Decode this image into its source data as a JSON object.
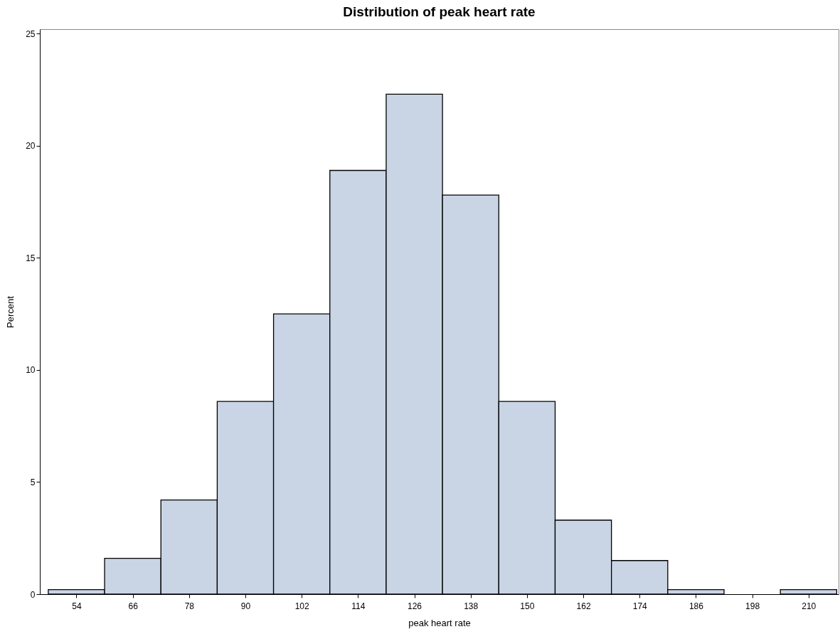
{
  "chart_data": {
    "type": "histogram",
    "title": "Distribution of peak heart rate",
    "xlabel": "peak heart rate",
    "ylabel": "Percent",
    "bins": [
      48,
      60,
      72,
      84,
      96,
      108,
      120,
      132,
      144,
      156,
      168,
      180,
      192,
      204,
      216
    ],
    "values": [
      0.2,
      1.6,
      4.2,
      8.6,
      12.5,
      18.9,
      22.3,
      17.8,
      8.6,
      3.3,
      1.5,
      0.2,
      0,
      0.2
    ],
    "color": "#c9d5e5",
    "xlim": [
      46.2,
      216.4
    ],
    "xticks": [
      54,
      66,
      78,
      90,
      102,
      114,
      126,
      138,
      150,
      162,
      174,
      186,
      198,
      210
    ],
    "ylim": [
      0,
      25.2
    ],
    "yticks": [
      0,
      5,
      10,
      15,
      20,
      25
    ],
    "grid": false
  }
}
